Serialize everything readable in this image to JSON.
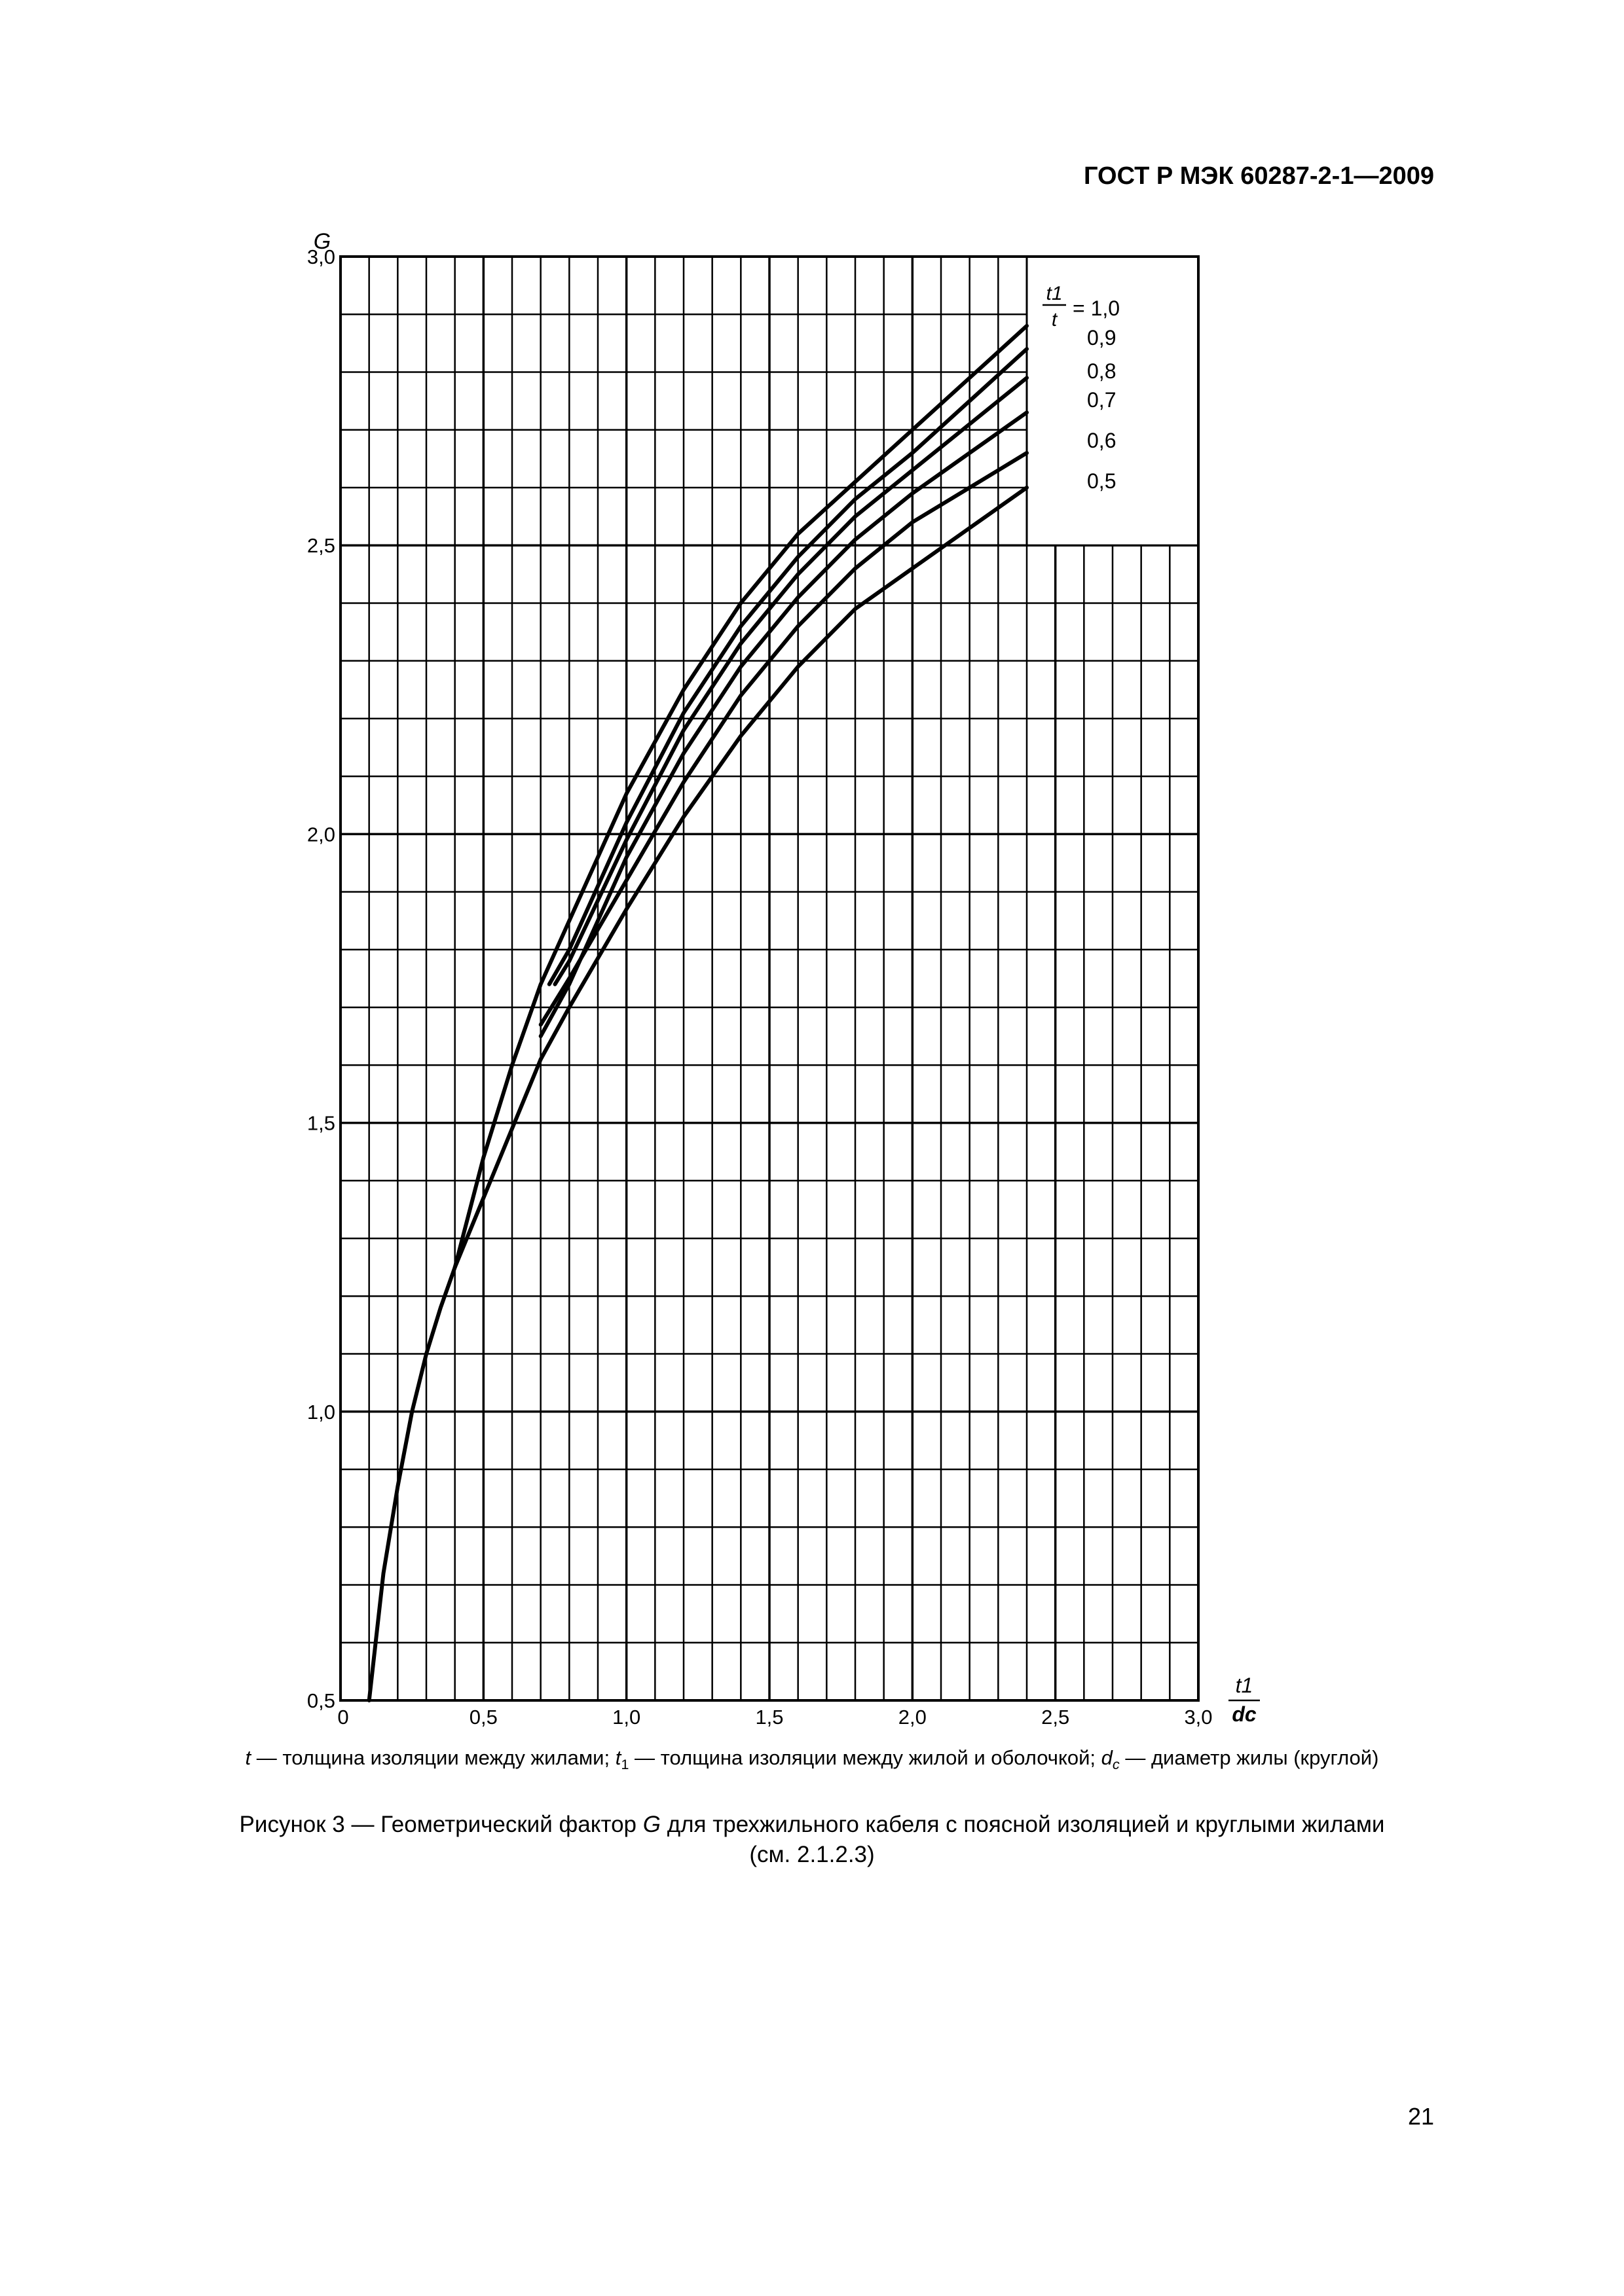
{
  "document": {
    "header": "ГОСТ Р МЭК 60287-2-1—2009",
    "page_number": "21"
  },
  "note": {
    "t_sym": "t",
    "t_text": " — толщина изоляции между жилами; ",
    "t1_sym": "t",
    "t1_sub": "1",
    "t1_text": " — толщина изоляции между жилой и оболочкой; ",
    "dc_sym": "d",
    "dc_sub": "c",
    "dc_text": " — диаметр жилы (круглой)"
  },
  "caption": {
    "prefix": "Рисунок  3 — Геометрический фактор ",
    "symbol": "G",
    "suffix": " для трехжильного кабеля с поясной изоляцией и круглыми жилами",
    "line2": "(см. 2.1.2.3)"
  },
  "chart_data": {
    "type": "line",
    "ylabel": "G",
    "xlabel_num": "t1",
    "xlabel_den": "dc",
    "legend_num": "t1",
    "legend_den": "t",
    "legend_eq": "= 1,0",
    "legend_labels": [
      "0,9",
      "0,8",
      "0,7",
      "0,6",
      "0,5"
    ],
    "xlim": [
      0,
      3.0
    ],
    "ylim": [
      0.5,
      3.0
    ],
    "x_ticks": [
      "0",
      "0,5",
      "1,0",
      "1,5",
      "2,0",
      "2,5",
      "3,0"
    ],
    "y_ticks": [
      "0,5",
      "1,0",
      "1,5",
      "2,0",
      "2,5",
      "3,0"
    ],
    "grid": true,
    "legend_position": "top-right",
    "common_curve": {
      "x": [
        0.1,
        0.15,
        0.2,
        0.25,
        0.3,
        0.35,
        0.4,
        0.5,
        0.6,
        0.7
      ],
      "y": [
        0.5,
        0.72,
        0.87,
        1.0,
        1.1,
        1.18,
        1.25,
        1.37,
        1.49,
        1.61
      ]
    },
    "series": [
      {
        "name": "1,0",
        "x": [
          0.4,
          0.5,
          0.6,
          0.7,
          0.8,
          1.0,
          1.2,
          1.4,
          1.6,
          1.8,
          2.0,
          2.2,
          2.4
        ],
        "y": [
          1.25,
          1.44,
          1.6,
          1.74,
          1.85,
          2.07,
          2.25,
          2.4,
          2.52,
          2.61,
          2.7,
          2.79,
          2.88
        ]
      },
      {
        "name": "0,9",
        "x": [
          0.73,
          0.8,
          1.0,
          1.2,
          1.4,
          1.6,
          1.8,
          2.0,
          2.2,
          2.4
        ],
        "y": [
          1.74,
          1.8,
          2.02,
          2.21,
          2.36,
          2.48,
          2.58,
          2.66,
          2.75,
          2.84
        ]
      },
      {
        "name": "0,8",
        "x": [
          0.75,
          0.8,
          1.0,
          1.2,
          1.4,
          1.6,
          1.8,
          2.0,
          2.2,
          2.4
        ],
        "y": [
          1.74,
          1.78,
          1.99,
          2.18,
          2.33,
          2.45,
          2.55,
          2.63,
          2.71,
          2.79
        ]
      },
      {
        "name": "0,7",
        "x": [
          0.7,
          0.8,
          1.0,
          1.2,
          1.4,
          1.6,
          1.8,
          2.0,
          2.2,
          2.4
        ],
        "y": [
          1.65,
          1.74,
          1.96,
          2.14,
          2.29,
          2.41,
          2.51,
          2.59,
          2.66,
          2.73
        ]
      },
      {
        "name": "0,6",
        "x": [
          0.7,
          0.8,
          1.0,
          1.2,
          1.4,
          1.6,
          1.8,
          2.0,
          2.2,
          2.4
        ],
        "y": [
          1.67,
          1.75,
          1.92,
          2.09,
          2.24,
          2.36,
          2.46,
          2.54,
          2.6,
          2.66
        ]
      },
      {
        "name": "0,5",
        "x": [
          0.7,
          0.8,
          1.0,
          1.2,
          1.4,
          1.6,
          1.8,
          2.0,
          2.2,
          2.4
        ],
        "y": [
          1.61,
          1.7,
          1.87,
          2.03,
          2.17,
          2.29,
          2.39,
          2.46,
          2.53,
          2.6
        ]
      }
    ]
  }
}
